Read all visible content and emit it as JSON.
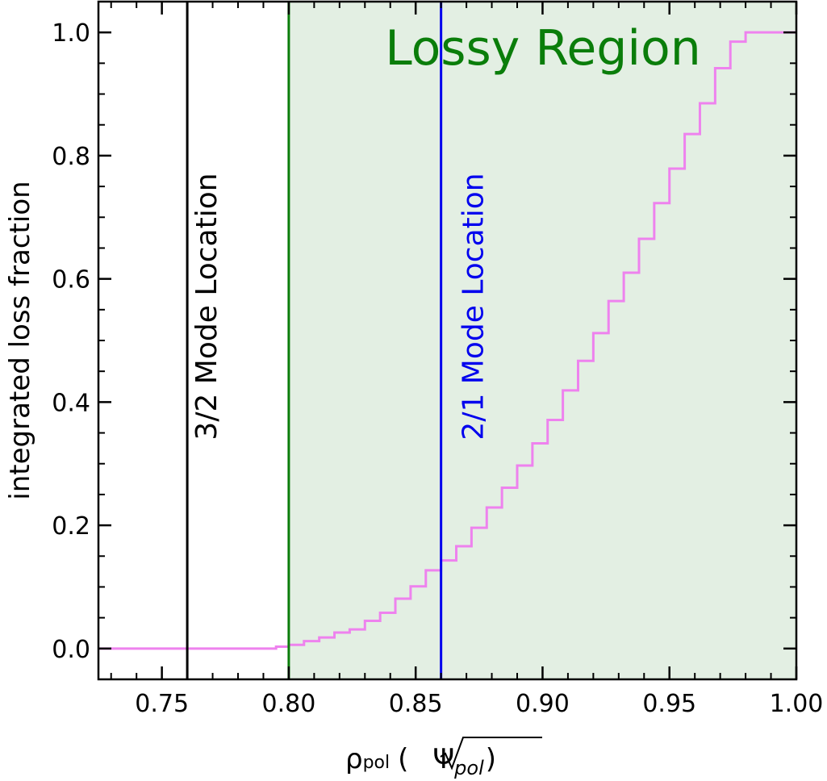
{
  "chart_data": {
    "type": "line",
    "title": "",
    "xlabel": "ρpol (√Ψpol)",
    "xlabel_parts": {
      "rho": "ρ",
      "rho_sub": "pol",
      "open": "(",
      "psi": "Ψ",
      "psi_sub": "pol",
      "close": ")"
    },
    "ylabel": "integrated loss fraction",
    "xlim": [
      0.725,
      1.0
    ],
    "ylim": [
      -0.05,
      1.05
    ],
    "x_ticks": [
      0.75,
      0.8,
      0.85,
      0.9,
      0.95,
      1.0
    ],
    "x_tick_labels": [
      "0.75",
      "0.80",
      "0.85",
      "0.90",
      "0.95",
      "1.00"
    ],
    "y_ticks": [
      0.0,
      0.2,
      0.4,
      0.6,
      0.8,
      1.0
    ],
    "y_tick_labels": [
      "0.0",
      "0.2",
      "0.4",
      "0.6",
      "0.8",
      "1.0"
    ],
    "grid": false,
    "shaded_region": {
      "label": "Lossy Region",
      "x_start": 0.8,
      "x_end": 1.0,
      "color": "#e3efe3",
      "text_color": "#0a7d0a"
    },
    "vertical_lines": [
      {
        "x": 0.76,
        "color": "#000000",
        "label": "3/2 Mode Location"
      },
      {
        "x": 0.8,
        "color": "#0a7d0a",
        "label": ""
      },
      {
        "x": 0.86,
        "color": "#0000ee",
        "label": "2/1 Mode Location"
      }
    ],
    "series": [
      {
        "step": "post",
        "color": "#ee82ee",
        "x": [
          0.725,
          0.795,
          0.8,
          0.806,
          0.812,
          0.818,
          0.824,
          0.83,
          0.836,
          0.842,
          0.848,
          0.854,
          0.86,
          0.866,
          0.872,
          0.878,
          0.884,
          0.89,
          0.896,
          0.902,
          0.908,
          0.914,
          0.92,
          0.926,
          0.932,
          0.938,
          0.944,
          0.95,
          0.956,
          0.962,
          0.968,
          0.974,
          0.98,
          0.986,
          1.0
        ],
        "y": [
          0.0,
          0.003,
          0.006,
          0.012,
          0.018,
          0.026,
          0.031,
          0.045,
          0.058,
          0.081,
          0.101,
          0.127,
          0.143,
          0.166,
          0.196,
          0.229,
          0.261,
          0.297,
          0.333,
          0.371,
          0.419,
          0.467,
          0.512,
          0.564,
          0.61,
          0.665,
          0.723,
          0.779,
          0.835,
          0.885,
          0.942,
          0.985,
          1.0,
          1.0,
          1.0
        ]
      }
    ]
  }
}
